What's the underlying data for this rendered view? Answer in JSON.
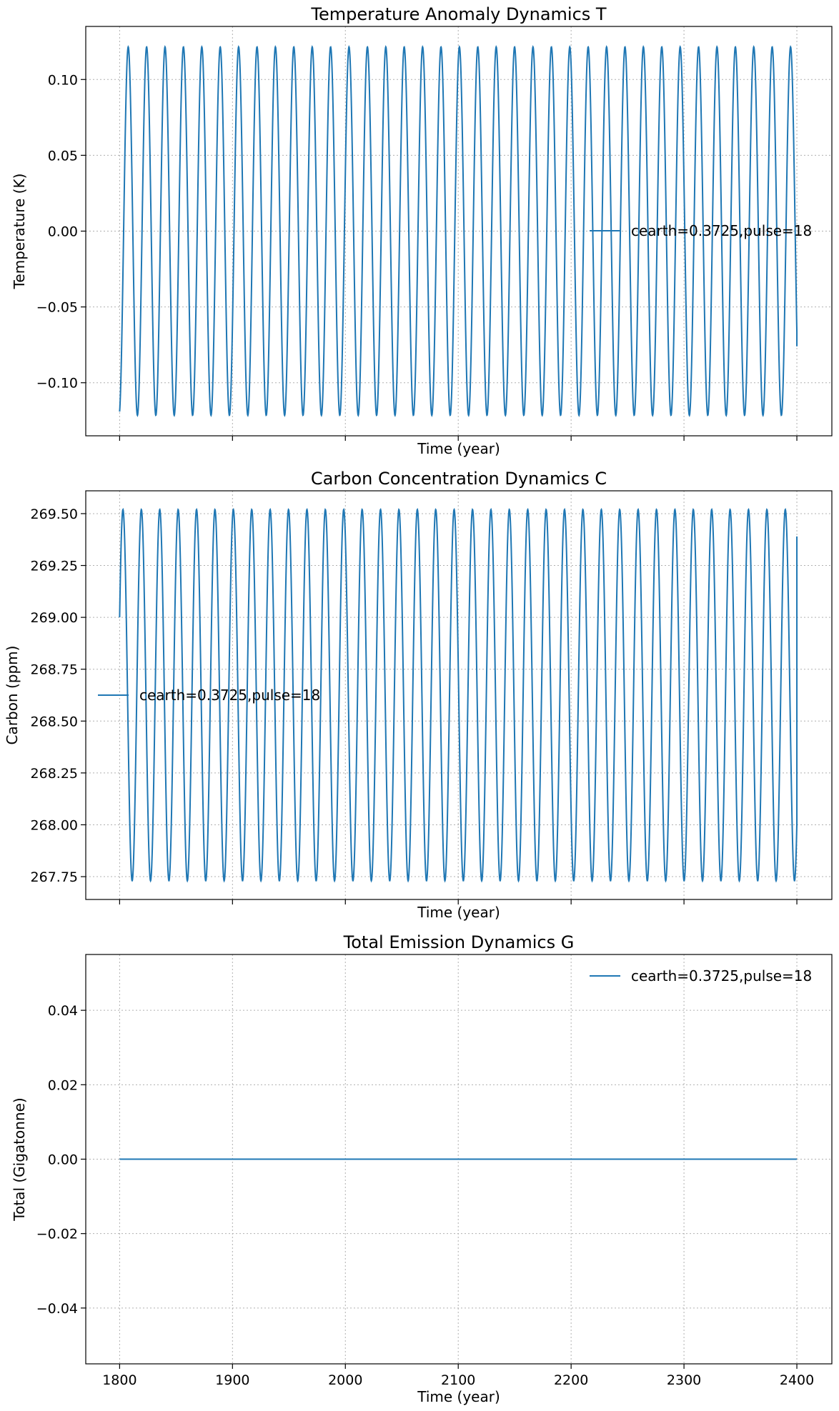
{
  "chart_data": [
    {
      "type": "line",
      "title": "Temperature Anomaly Dynamics T",
      "xlabel": "Time (year)",
      "ylabel": "Temperature (K)",
      "xlim": [
        1770,
        2431
      ],
      "ylim": [
        -0.135,
        0.135
      ],
      "xticks": [
        1800,
        1900,
        2000,
        2100,
        2200,
        2300,
        2400
      ],
      "show_xtick_labels": false,
      "yticks": [
        -0.1,
        -0.05,
        0.0,
        0.05,
        0.1
      ],
      "ytick_labels": [
        "−0.10",
        "−0.05",
        "0.00",
        "0.05",
        "0.10"
      ],
      "grid": true,
      "legend_position": "center-right",
      "series": [
        {
          "name": "cearth=0.3725,pulse=18",
          "color": "#1f77b4",
          "x_start": 1800,
          "x_end": 2400,
          "waveform": "sinusoid",
          "period_years": 16.3,
          "center": 0.0,
          "amplitude": 0.1215,
          "start_value": -0.119,
          "end_value": -0.076
        }
      ]
    },
    {
      "type": "line",
      "title": "Carbon Concentration Dynamics C",
      "xlabel": "Time (year)",
      "ylabel": "Carbon (ppm)",
      "xlim": [
        1770,
        2431
      ],
      "ylim": [
        267.64,
        269.61
      ],
      "xticks": [
        1800,
        1900,
        2000,
        2100,
        2200,
        2300,
        2400
      ],
      "show_xtick_labels": false,
      "yticks": [
        267.75,
        268.0,
        268.25,
        268.5,
        268.75,
        269.0,
        269.25,
        269.5
      ],
      "ytick_labels": [
        "267.75",
        "268.00",
        "268.25",
        "268.50",
        "268.75",
        "269.00",
        "269.25",
        "269.50"
      ],
      "grid": true,
      "legend_position": "center-left",
      "series": [
        {
          "name": "cearth=0.3725,pulse=18",
          "color": "#1f77b4",
          "x_start": 1800,
          "x_end": 2400,
          "waveform": "sinusoid",
          "period_years": 16.3,
          "center": 268.625,
          "amplitude": 0.895,
          "start_value": 269.0,
          "end_value": 269.39
        }
      ]
    },
    {
      "type": "line",
      "title": "Total Emission Dynamics G",
      "xlabel": "Time (year)",
      "ylabel": "Total (Gigatonne)",
      "xlim": [
        1770,
        2431
      ],
      "ylim": [
        -0.055,
        0.055
      ],
      "xticks": [
        1800,
        1900,
        2000,
        2100,
        2200,
        2300,
        2400
      ],
      "xtick_labels": [
        "1800",
        "1900",
        "2000",
        "2100",
        "2200",
        "2300",
        "2400"
      ],
      "show_xtick_labels": true,
      "yticks": [
        -0.04,
        -0.02,
        0.0,
        0.02,
        0.04
      ],
      "ytick_labels": [
        "−0.04",
        "−0.02",
        "0.00",
        "0.02",
        "0.04"
      ],
      "grid": true,
      "legend_position": "top-right",
      "series": [
        {
          "name": "cearth=0.3725,pulse=18",
          "color": "#1f77b4",
          "x": [
            1800,
            2400
          ],
          "y": [
            0.0,
            0.0
          ]
        }
      ]
    }
  ]
}
